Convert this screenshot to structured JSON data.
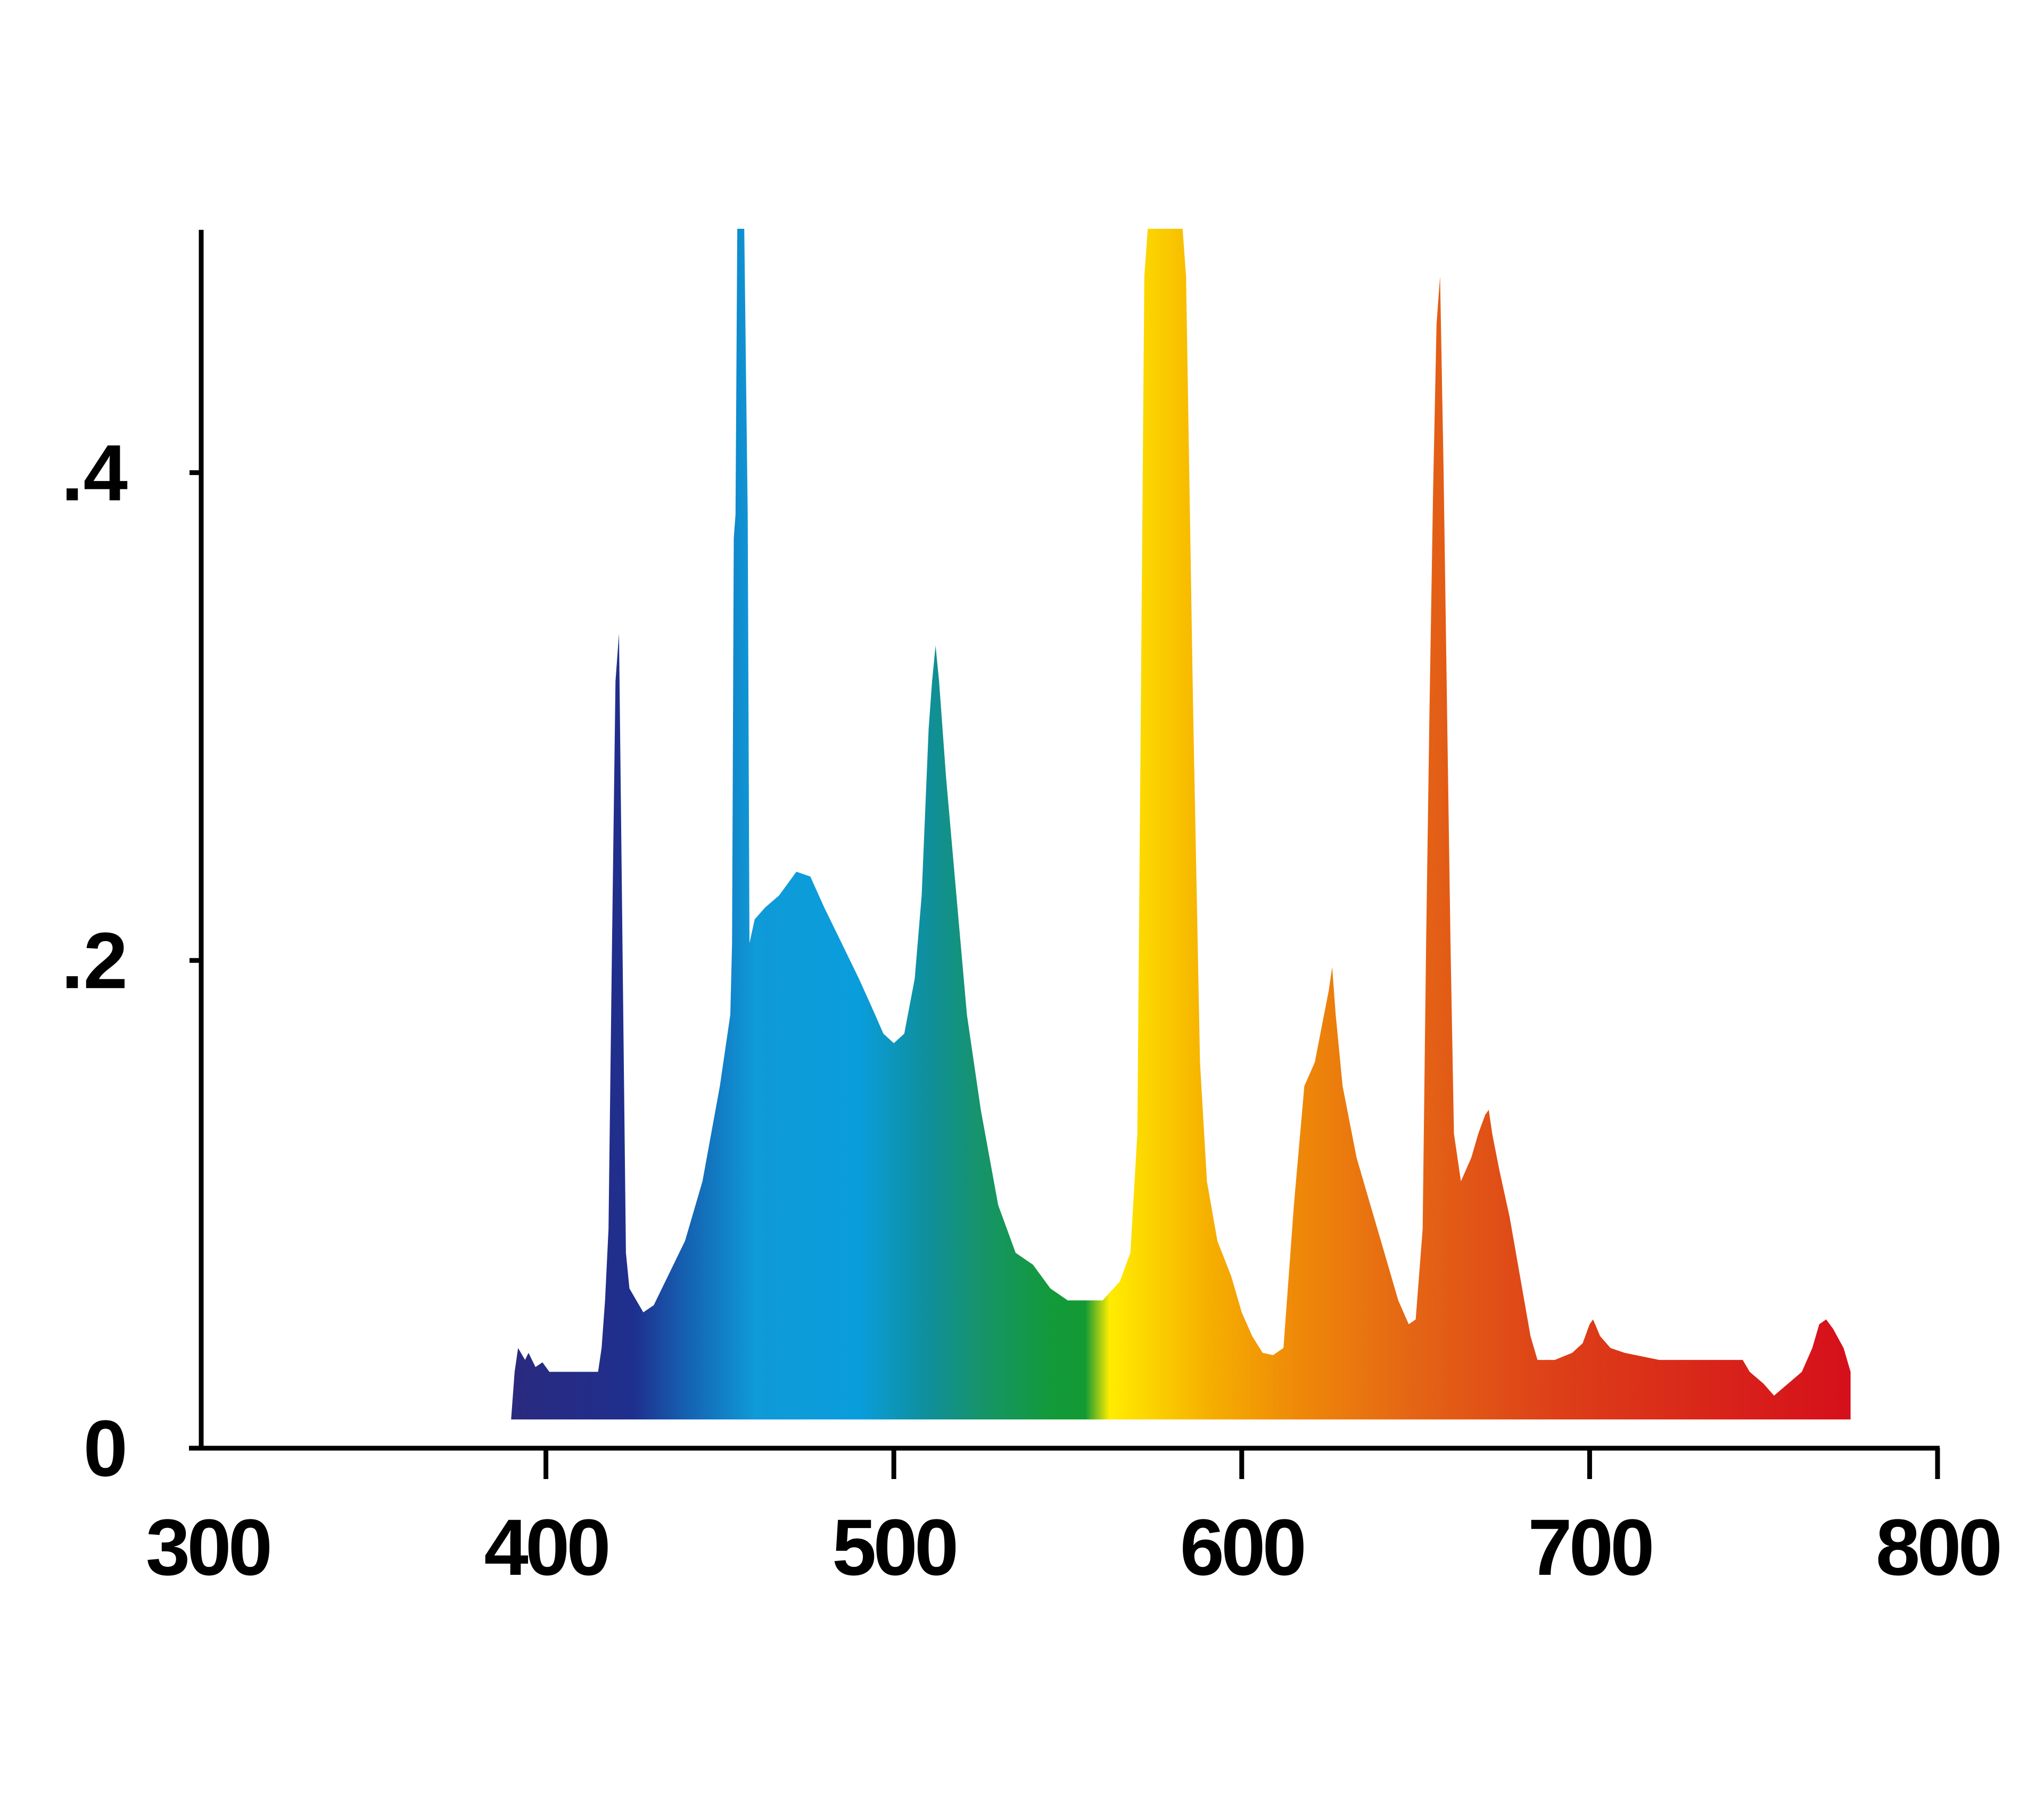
{
  "chart_data": {
    "type": "area",
    "title": "",
    "xlabel": "",
    "ylabel": "",
    "xlim": [
      300,
      800
    ],
    "ylim": [
      0,
      0.5
    ],
    "grid": false,
    "legend": "none",
    "x_ticks": [
      {
        "value": 300,
        "label": "300"
      },
      {
        "value": 400,
        "label": "400"
      },
      {
        "value": 500,
        "label": "500"
      },
      {
        "value": 600,
        "label": "600"
      },
      {
        "value": 700,
        "label": "700"
      },
      {
        "value": 800,
        "label": "800"
      }
    ],
    "y_ticks": [
      {
        "value": 0,
        "label": "0"
      },
      {
        "value": 0.2,
        "label": ".2"
      },
      {
        "value": 0.4,
        "label": ".4"
      }
    ],
    "gradient": [
      {
        "wavelength": 390,
        "color": "#2a2a7e"
      },
      {
        "wavelength": 425,
        "color": "#1f2f8e"
      },
      {
        "wavelength": 440,
        "color": "#1560b0"
      },
      {
        "wavelength": 460,
        "color": "#0f9ad8"
      },
      {
        "wavelength": 490,
        "color": "#0a9ddc"
      },
      {
        "wavelength": 510,
        "color": "#0f8f9a"
      },
      {
        "wavelength": 525,
        "color": "#16946a"
      },
      {
        "wavelength": 545,
        "color": "#129a3a"
      },
      {
        "wavelength": 555,
        "color": "#139a34"
      },
      {
        "wavelength": 562,
        "color": "#ffec00"
      },
      {
        "wavelength": 575,
        "color": "#fbd000"
      },
      {
        "wavelength": 590,
        "color": "#f6b000"
      },
      {
        "wavelength": 615,
        "color": "#ef8a08"
      },
      {
        "wavelength": 650,
        "color": "#e46415"
      },
      {
        "wavelength": 690,
        "color": "#dd4018"
      },
      {
        "wavelength": 740,
        "color": "#d8221a"
      },
      {
        "wavelength": 775,
        "color": "#d60f1b"
      }
    ],
    "series": [
      {
        "points": [
          [
            390,
            0.0
          ],
          [
            391,
            0.02
          ],
          [
            392,
            0.03
          ],
          [
            394,
            0.025
          ],
          [
            395,
            0.028
          ],
          [
            397,
            0.022
          ],
          [
            399,
            0.024
          ],
          [
            401,
            0.02
          ],
          [
            415,
            0.02
          ],
          [
            416,
            0.03
          ],
          [
            417,
            0.05
          ],
          [
            418,
            0.08
          ],
          [
            419,
            0.2
          ],
          [
            420,
            0.31
          ],
          [
            421,
            0.33
          ],
          [
            422,
            0.2
          ],
          [
            423,
            0.07
          ],
          [
            424,
            0.055
          ],
          [
            426,
            0.05
          ],
          [
            428,
            0.045
          ],
          [
            431,
            0.048
          ],
          [
            435,
            0.06
          ],
          [
            440,
            0.075
          ],
          [
            445,
            0.1
          ],
          [
            450,
            0.14
          ],
          [
            453,
            0.17
          ],
          [
            453.5,
            0.2
          ],
          [
            454,
            0.37
          ],
          [
            454.5,
            0.38
          ],
          [
            455,
            0.5
          ],
          [
            457,
            0.5
          ],
          [
            458,
            0.38
          ],
          [
            458.5,
            0.2
          ],
          [
            460,
            0.21
          ],
          [
            463,
            0.215
          ],
          [
            467,
            0.22
          ],
          [
            472,
            0.23
          ],
          [
            476,
            0.228
          ],
          [
            480,
            0.215
          ],
          [
            485,
            0.2
          ],
          [
            490,
            0.185
          ],
          [
            494,
            0.172
          ],
          [
            497,
            0.162
          ],
          [
            500,
            0.158
          ],
          [
            503,
            0.162
          ],
          [
            506,
            0.185
          ],
          [
            508,
            0.22
          ],
          [
            510,
            0.29
          ],
          [
            511,
            0.31
          ],
          [
            512,
            0.325
          ],
          [
            513,
            0.31
          ],
          [
            515,
            0.27
          ],
          [
            518,
            0.22
          ],
          [
            521,
            0.17
          ],
          [
            525,
            0.13
          ],
          [
            530,
            0.09
          ],
          [
            535,
            0.07
          ],
          [
            540,
            0.065
          ],
          [
            545,
            0.055
          ],
          [
            550,
            0.05
          ],
          [
            556,
            0.05
          ],
          [
            560,
            0.05
          ],
          [
            565,
            0.058
          ],
          [
            568,
            0.07
          ],
          [
            570,
            0.12
          ],
          [
            571,
            0.3
          ],
          [
            572,
            0.48
          ],
          [
            573,
            0.5
          ],
          [
            583,
            0.5
          ],
          [
            584,
            0.48
          ],
          [
            586,
            0.3
          ],
          [
            588,
            0.15
          ],
          [
            590,
            0.1
          ],
          [
            593,
            0.075
          ],
          [
            597,
            0.06
          ],
          [
            600,
            0.045
          ],
          [
            603,
            0.035
          ],
          [
            606,
            0.028
          ],
          [
            609,
            0.027
          ],
          [
            612,
            0.03
          ],
          [
            615,
            0.09
          ],
          [
            618,
            0.14
          ],
          [
            621,
            0.15
          ],
          [
            623,
            0.165
          ],
          [
            625,
            0.18
          ],
          [
            626,
            0.19
          ],
          [
            627,
            0.17
          ],
          [
            629,
            0.14
          ],
          [
            633,
            0.11
          ],
          [
            637,
            0.09
          ],
          [
            641,
            0.07
          ],
          [
            645,
            0.05
          ],
          [
            648,
            0.04
          ],
          [
            650,
            0.042
          ],
          [
            652,
            0.08
          ],
          [
            653,
            0.2
          ],
          [
            654,
            0.3
          ],
          [
            655,
            0.39
          ],
          [
            656,
            0.46
          ],
          [
            657,
            0.48
          ],
          [
            658,
            0.4
          ],
          [
            659,
            0.3
          ],
          [
            660,
            0.2
          ],
          [
            661,
            0.12
          ],
          [
            663,
            0.1
          ],
          [
            666,
            0.11
          ],
          [
            668,
            0.12
          ],
          [
            670,
            0.128
          ],
          [
            671,
            0.13
          ],
          [
            672,
            0.12
          ],
          [
            674,
            0.105
          ],
          [
            677,
            0.085
          ],
          [
            680,
            0.06
          ],
          [
            683,
            0.035
          ],
          [
            685,
            0.025
          ],
          [
            690,
            0.025
          ],
          [
            695,
            0.028
          ],
          [
            698,
            0.032
          ],
          [
            700,
            0.04
          ],
          [
            701,
            0.042
          ],
          [
            703,
            0.035
          ],
          [
            706,
            0.03
          ],
          [
            710,
            0.028
          ],
          [
            720,
            0.025
          ],
          [
            730,
            0.025
          ],
          [
            740,
            0.025
          ],
          [
            744,
            0.025
          ],
          [
            746,
            0.02
          ],
          [
            750,
            0.015
          ],
          [
            753,
            0.01
          ],
          [
            757,
            0.015
          ],
          [
            761,
            0.02
          ],
          [
            764,
            0.03
          ],
          [
            766,
            0.04
          ],
          [
            768,
            0.042
          ],
          [
            770,
            0.038
          ],
          [
            773,
            0.03
          ],
          [
            775,
            0.02
          ],
          [
            775,
            0.0
          ]
        ]
      }
    ]
  }
}
